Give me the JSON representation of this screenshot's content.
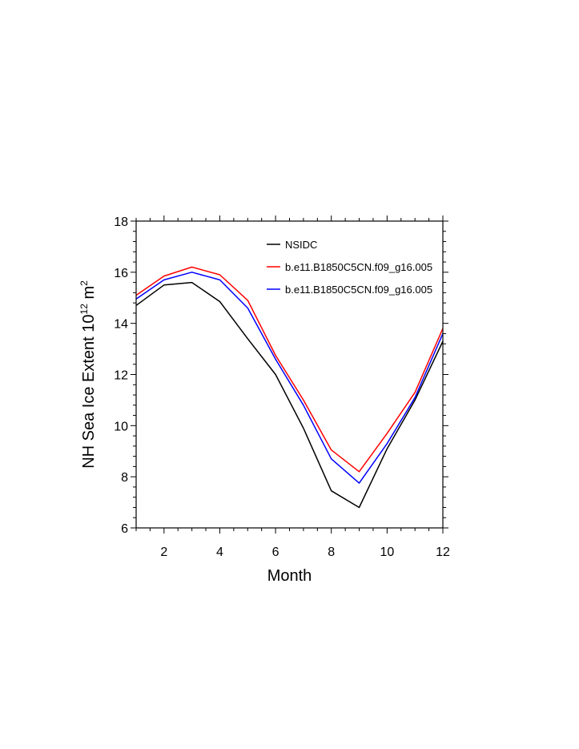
{
  "chart_data": {
    "type": "line",
    "xlabel": "Month",
    "ylabel": "NH Sea Ice Extent 10",
    "ylabel_exp1": "12",
    "ylabel_unit": " m",
    "ylabel_exp2": "2",
    "xlim": [
      1,
      12
    ],
    "ylim": [
      6,
      18
    ],
    "x_ticks": [
      2,
      4,
      6,
      8,
      10,
      12
    ],
    "y_ticks": [
      6,
      8,
      10,
      12,
      14,
      16,
      18
    ],
    "x": [
      1,
      2,
      3,
      4,
      5,
      6,
      7,
      8,
      9,
      10,
      11,
      12
    ],
    "legend_position": "top-right",
    "series": [
      {
        "name": "NSIDC",
        "color": "#000000",
        "values": [
          14.7,
          15.5,
          15.6,
          14.85,
          13.4,
          12.0,
          9.9,
          7.45,
          6.8,
          9.1,
          11.0,
          13.3
        ]
      },
      {
        "name": "b.e11.B1850C5CN.f09_g16.005",
        "color": "#ff0000",
        "values": [
          15.1,
          15.85,
          16.2,
          15.9,
          14.9,
          12.75,
          11.0,
          9.05,
          8.2,
          9.7,
          11.3,
          13.8
        ]
      },
      {
        "name": "b.e11.B1850C5CN.f09_g16.005",
        "color": "#0000ff",
        "values": [
          14.95,
          15.7,
          16.0,
          15.7,
          14.6,
          12.6,
          10.8,
          8.7,
          7.75,
          9.3,
          11.1,
          13.6
        ]
      }
    ]
  }
}
